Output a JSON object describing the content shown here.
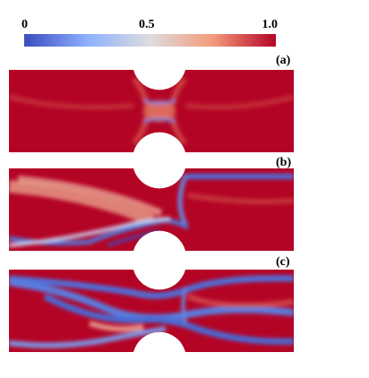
{
  "colorbar": {
    "ticks": [
      "0",
      "0.5",
      "1.0"
    ],
    "colors": {
      "low": "#3b4cc0",
      "mid": "#dddddd",
      "high": "#b40426"
    }
  },
  "panels": [
    {
      "label": "(a)"
    },
    {
      "label": "(b)"
    },
    {
      "label": "(c)"
    }
  ]
}
